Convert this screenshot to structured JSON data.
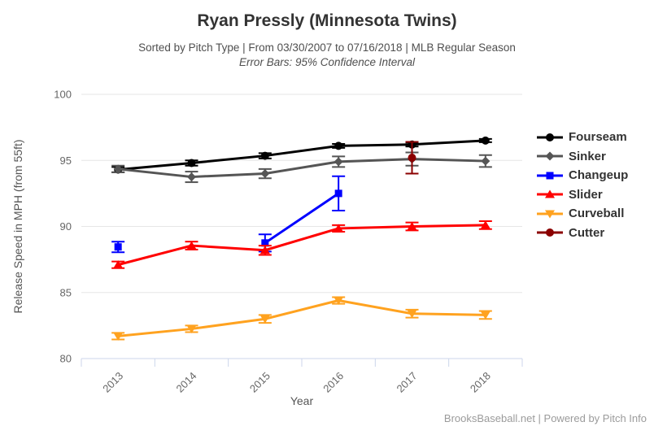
{
  "header": {
    "title": "Ryan Pressly (Minnesota Twins)",
    "subtitle": "Sorted by Pitch Type | From 03/30/2007 to 07/16/2018 | MLB Regular Season",
    "error_note": "Error Bars: 95% Confidence Interval"
  },
  "footer": {
    "credit": "BrooksBaseball.net | Powered by Pitch Info"
  },
  "chart_data": {
    "type": "line",
    "title": "Ryan Pressly (Minnesota Twins)",
    "subtitle": "Sorted by Pitch Type | From 03/30/2007 to 07/16/2018 | MLB Regular Season",
    "error_bars": "95% Confidence Interval",
    "xlabel": "Year",
    "ylabel": "Release Speed in MPH (from 55ft)",
    "categories": [
      "2013",
      "2014",
      "2015",
      "2016",
      "2017",
      "2018"
    ],
    "ylim": [
      80,
      100
    ],
    "yticks": [
      80,
      85,
      90,
      95,
      100
    ],
    "grid": true,
    "legend_position": "right",
    "series": [
      {
        "name": "Fourseam",
        "color": "#000000",
        "marker": "circle",
        "values": [
          94.3,
          94.8,
          95.35,
          96.1,
          96.2,
          96.5
        ],
        "errors": [
          0.2,
          0.2,
          0.2,
          0.15,
          0.15,
          0.12
        ]
      },
      {
        "name": "Sinker",
        "color": "#555555",
        "marker": "diamond",
        "values": [
          94.35,
          93.75,
          94.0,
          94.9,
          95.1,
          94.95
        ],
        "errors": [
          0.25,
          0.4,
          0.35,
          0.4,
          0.5,
          0.45
        ]
      },
      {
        "name": "Changeup",
        "color": "#0000ff",
        "marker": "square",
        "values": [
          88.45,
          null,
          88.75,
          92.5,
          null,
          null
        ],
        "errors": [
          0.4,
          null,
          0.65,
          1.3,
          null,
          null
        ]
      },
      {
        "name": "Slider",
        "color": "#ff0000",
        "marker": "triangle-up",
        "values": [
          87.1,
          88.55,
          88.2,
          89.85,
          90.0,
          90.1
        ],
        "errors": [
          0.25,
          0.3,
          0.35,
          0.25,
          0.3,
          0.3
        ]
      },
      {
        "name": "Curveball",
        "color": "#ffa21f",
        "marker": "triangle-down",
        "values": [
          81.7,
          82.25,
          83.0,
          84.4,
          83.4,
          83.3
        ],
        "errors": [
          0.25,
          0.25,
          0.3,
          0.25,
          0.3,
          0.3
        ]
      },
      {
        "name": "Cutter",
        "color": "#8b0000",
        "marker": "circle",
        "values": [
          null,
          null,
          null,
          null,
          95.2,
          null
        ],
        "errors": [
          null,
          null,
          null,
          null,
          1.2,
          null
        ]
      }
    ]
  },
  "colors": {
    "grid": "#e6e6e6",
    "axis_line": "#ccd6eb",
    "tick_label": "#666666",
    "axis_title": "#555555",
    "legend_text": "#333333",
    "footer_text": "#9b9b9b"
  }
}
